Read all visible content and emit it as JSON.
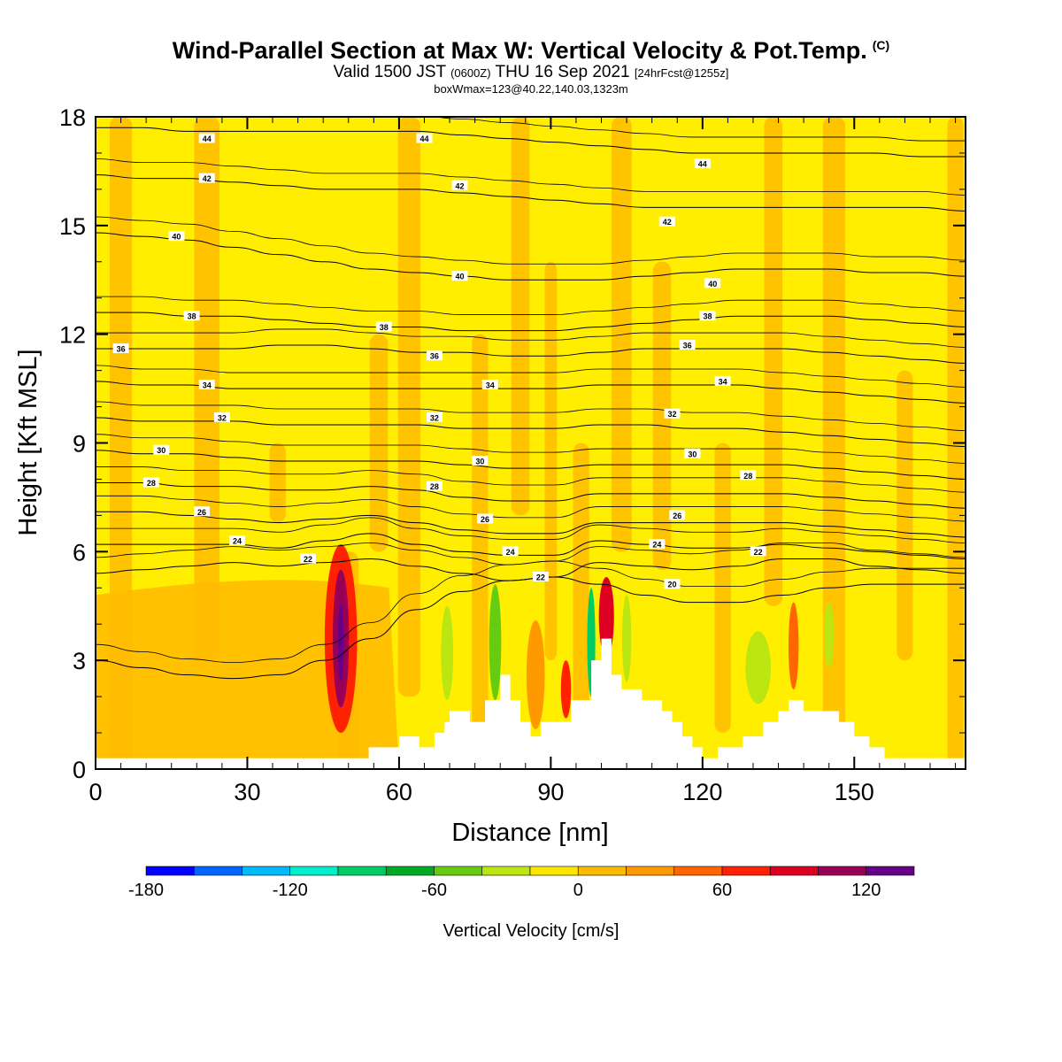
{
  "header": {
    "title": "Wind-Parallel Section at Max W: Vertical Velocity & Pot.Temp.",
    "copyright": "(C)",
    "valid_prefix": "Valid 1500 JST",
    "valid_utc": "(0600Z)",
    "valid_date": "THU 16 Sep 2021",
    "forecast": "[24hrFcst@1255z]",
    "boxinfo": "boxWmax=123@40.22,140.03,1323m"
  },
  "colors": {
    "background": "#ffee00",
    "terrain": "#ffffff",
    "scale": [
      "#0000ff",
      "#0066ff",
      "#00bbff",
      "#00eecc",
      "#00cc66",
      "#00aa22",
      "#66cc11",
      "#bbe611",
      "#ffe600",
      "#ffbb00",
      "#ff9900",
      "#ff6600",
      "#ff2200",
      "#dd0022",
      "#990055",
      "#660088"
    ]
  },
  "colorbar": {
    "label": "Vertical Velocity [cm/s]",
    "ticks": [
      "-180",
      "-120",
      "-60",
      "0",
      "60",
      "120"
    ],
    "tick_values": [
      -180,
      -120,
      -60,
      0,
      60,
      120
    ],
    "range": [
      -180,
      140
    ]
  },
  "chart_data": {
    "type": "heatmap",
    "title": "Wind-Parallel Section at Max W: Vertical Velocity & Pot.Temp.",
    "xlabel": "Distance [nm]",
    "ylabel": "Height [Kft MSL]",
    "xlim": [
      0,
      172
    ],
    "ylim": [
      0,
      18
    ],
    "xticks": [
      "0",
      "30",
      "60",
      "90",
      "120",
      "150"
    ],
    "yticks": [
      "0",
      "3",
      "6",
      "9",
      "12",
      "15",
      "18"
    ],
    "terrain": [
      [
        0,
        0.3
      ],
      [
        54,
        0.3
      ],
      [
        54,
        0.6
      ],
      [
        60,
        0.6
      ],
      [
        60,
        0.9
      ],
      [
        64,
        0.9
      ],
      [
        64,
        0.6
      ],
      [
        67,
        0.6
      ],
      [
        67,
        1.0
      ],
      [
        69,
        1.0
      ],
      [
        69,
        1.3
      ],
      [
        70,
        1.3
      ],
      [
        70,
        1.6
      ],
      [
        74,
        1.6
      ],
      [
        74,
        1.3
      ],
      [
        77,
        1.3
      ],
      [
        77,
        1.9
      ],
      [
        80,
        1.9
      ],
      [
        80,
        2.6
      ],
      [
        82,
        2.6
      ],
      [
        82,
        1.9
      ],
      [
        84,
        1.9
      ],
      [
        84,
        1.3
      ],
      [
        86,
        1.3
      ],
      [
        86,
        0.9
      ],
      [
        88,
        0.9
      ],
      [
        88,
        1.3
      ],
      [
        94,
        1.3
      ],
      [
        94,
        1.9
      ],
      [
        98,
        1.9
      ],
      [
        98,
        3.0
      ],
      [
        100,
        3.0
      ],
      [
        100,
        3.6
      ],
      [
        102,
        3.6
      ],
      [
        102,
        2.6
      ],
      [
        104,
        2.6
      ],
      [
        104,
        2.2
      ],
      [
        108,
        2.2
      ],
      [
        108,
        1.9
      ],
      [
        112,
        1.9
      ],
      [
        112,
        1.6
      ],
      [
        114,
        1.6
      ],
      [
        114,
        1.3
      ],
      [
        116,
        1.3
      ],
      [
        116,
        0.9
      ],
      [
        118,
        0.9
      ],
      [
        118,
        0.6
      ],
      [
        120,
        0.6
      ],
      [
        120,
        0.3
      ],
      [
        123,
        0.3
      ],
      [
        123,
        0.6
      ],
      [
        128,
        0.6
      ],
      [
        128,
        0.9
      ],
      [
        132,
        0.9
      ],
      [
        132,
        1.3
      ],
      [
        135,
        1.3
      ],
      [
        135,
        1.6
      ],
      [
        137,
        1.6
      ],
      [
        137,
        1.9
      ],
      [
        140,
        1.9
      ],
      [
        140,
        1.6
      ],
      [
        147,
        1.6
      ],
      [
        147,
        1.3
      ],
      [
        150,
        1.3
      ],
      [
        150,
        0.9
      ],
      [
        153,
        0.9
      ],
      [
        153,
        0.6
      ],
      [
        156,
        0.6
      ],
      [
        156,
        0.3
      ],
      [
        172,
        0.3
      ]
    ],
    "theta_levels": [
      {
        "value": 20,
        "y": [
          3.0,
          2.8,
          2.6,
          2.5,
          2.6,
          3.0,
          3.6,
          4.4,
          4.9,
          5.2,
          5.3,
          5.1,
          4.8,
          4.6,
          4.6,
          4.8,
          5.0,
          5.1,
          5.1,
          5.1
        ]
      },
      {
        "value": 22,
        "y": [
          5.4,
          5.5,
          5.6,
          5.7,
          5.6,
          5.7,
          5.8,
          5.6,
          5.4,
          5.2,
          5.3,
          5.7,
          5.6,
          5.5,
          5.6,
          5.8,
          5.8,
          5.6,
          5.5,
          5.4
        ]
      },
      {
        "value": 24,
        "y": [
          6.2,
          6.2,
          6.2,
          6.2,
          6.1,
          6.3,
          6.5,
          6.2,
          6.0,
          5.9,
          5.9,
          6.3,
          6.2,
          6.1,
          6.1,
          6.2,
          6.1,
          6.0,
          5.9,
          5.8
        ]
      },
      {
        "value": 26,
        "y": [
          7.1,
          7.1,
          7.0,
          6.9,
          6.8,
          6.9,
          7.0,
          6.8,
          6.6,
          6.5,
          6.5,
          6.8,
          6.8,
          6.8,
          6.8,
          6.8,
          6.7,
          6.6,
          6.5,
          6.4
        ]
      },
      {
        "value": 28,
        "y": [
          7.9,
          7.9,
          7.8,
          7.8,
          7.7,
          7.7,
          7.8,
          7.7,
          7.5,
          7.4,
          7.4,
          7.6,
          7.6,
          7.6,
          7.6,
          7.6,
          7.5,
          7.4,
          7.3,
          7.2
        ]
      },
      {
        "value": 30,
        "y": [
          8.8,
          8.7,
          8.7,
          8.6,
          8.5,
          8.5,
          8.5,
          8.5,
          8.4,
          8.3,
          8.3,
          8.4,
          8.4,
          8.4,
          8.4,
          8.4,
          8.3,
          8.2,
          8.1,
          8.0
        ]
      },
      {
        "value": 32,
        "y": [
          9.7,
          9.6,
          9.6,
          9.6,
          9.5,
          9.5,
          9.5,
          9.5,
          9.4,
          9.4,
          9.4,
          9.5,
          9.5,
          9.4,
          9.4,
          9.3,
          9.2,
          9.1,
          9.0,
          8.9
        ]
      },
      {
        "value": 34,
        "y": [
          10.7,
          10.6,
          10.6,
          10.5,
          10.5,
          10.5,
          10.5,
          10.5,
          10.5,
          10.5,
          10.5,
          10.6,
          10.6,
          10.6,
          10.6,
          10.5,
          10.4,
          10.3,
          10.2,
          10.1
        ]
      },
      {
        "value": 36,
        "y": [
          11.6,
          11.6,
          11.6,
          11.6,
          11.7,
          11.7,
          11.6,
          11.5,
          11.5,
          11.4,
          11.4,
          11.5,
          11.6,
          11.6,
          11.6,
          11.6,
          11.5,
          11.4,
          11.3,
          11.2
        ]
      },
      {
        "value": 38,
        "y": [
          12.6,
          12.6,
          12.5,
          12.5,
          12.4,
          12.3,
          12.2,
          12.2,
          12.1,
          12.1,
          12.1,
          12.2,
          12.3,
          12.4,
          12.5,
          12.5,
          12.5,
          12.4,
          12.3,
          12.2
        ]
      },
      {
        "value": 40,
        "y": [
          14.8,
          14.7,
          14.6,
          14.4,
          14.2,
          14.0,
          13.8,
          13.7,
          13.6,
          13.5,
          13.5,
          13.5,
          13.6,
          13.7,
          13.8,
          13.8,
          13.8,
          13.7,
          13.7,
          13.6
        ]
      },
      {
        "value": 42,
        "y": [
          16.4,
          16.3,
          16.3,
          16.2,
          16.1,
          16.0,
          16.0,
          16.0,
          15.9,
          15.8,
          15.7,
          15.6,
          15.5,
          15.5,
          15.5,
          15.5,
          15.5,
          15.5,
          15.5,
          15.4
        ]
      },
      {
        "value": 44,
        "y": [
          17.7,
          17.7,
          17.6,
          17.6,
          17.6,
          17.6,
          17.6,
          17.6,
          17.5,
          17.4,
          17.3,
          17.2,
          17.1,
          17.0,
          17.0,
          17.0,
          17.0,
          17.0,
          16.9,
          16.9
        ]
      }
    ],
    "theta_labels": [
      {
        "text": "44",
        "x": 22,
        "y": 17.4
      },
      {
        "text": "44",
        "x": 65,
        "y": 17.4
      },
      {
        "text": "44",
        "x": 120,
        "y": 16.7
      },
      {
        "text": "42",
        "x": 22,
        "y": 16.3
      },
      {
        "text": "42",
        "x": 72,
        "y": 16.1
      },
      {
        "text": "42",
        "x": 113,
        "y": 15.1
      },
      {
        "text": "40",
        "x": 16,
        "y": 14.7
      },
      {
        "text": "40",
        "x": 72,
        "y": 13.6
      },
      {
        "text": "40",
        "x": 122,
        "y": 13.4
      },
      {
        "text": "38",
        "x": 19,
        "y": 12.5
      },
      {
        "text": "38",
        "x": 57,
        "y": 12.2
      },
      {
        "text": "38",
        "x": 121,
        "y": 12.5
      },
      {
        "text": "36",
        "x": 5,
        "y": 11.6
      },
      {
        "text": "36",
        "x": 67,
        "y": 11.4
      },
      {
        "text": "36",
        "x": 117,
        "y": 11.7
      },
      {
        "text": "34",
        "x": 22,
        "y": 10.6
      },
      {
        "text": "34",
        "x": 78,
        "y": 10.6
      },
      {
        "text": "34",
        "x": 124,
        "y": 10.7
      },
      {
        "text": "32",
        "x": 25,
        "y": 9.7
      },
      {
        "text": "32",
        "x": 67,
        "y": 9.7
      },
      {
        "text": "32",
        "x": 114,
        "y": 9.8
      },
      {
        "text": "30",
        "x": 13,
        "y": 8.8
      },
      {
        "text": "30",
        "x": 76,
        "y": 8.5
      },
      {
        "text": "30",
        "x": 118,
        "y": 8.7
      },
      {
        "text": "28",
        "x": 11,
        "y": 7.9
      },
      {
        "text": "28",
        "x": 67,
        "y": 7.8
      },
      {
        "text": "28",
        "x": 129,
        "y": 8.1
      },
      {
        "text": "26",
        "x": 21,
        "y": 7.1
      },
      {
        "text": "26",
        "x": 77,
        "y": 6.9
      },
      {
        "text": "26",
        "x": 115,
        "y": 7.0
      },
      {
        "text": "24",
        "x": 28,
        "y": 6.3
      },
      {
        "text": "24",
        "x": 82,
        "y": 6.0
      },
      {
        "text": "24",
        "x": 111,
        "y": 6.2
      },
      {
        "text": "22",
        "x": 42,
        "y": 5.8
      },
      {
        "text": "22",
        "x": 88,
        "y": 5.3
      },
      {
        "text": "22",
        "x": 131,
        "y": 6.0
      },
      {
        "text": "20",
        "x": 114,
        "y": 5.1
      }
    ],
    "w_features": [
      {
        "x": 48.5,
        "y": 3.6,
        "rx": 3.2,
        "ry": 2.6,
        "w": 75
      },
      {
        "x": 48.5,
        "y": 3.6,
        "rx": 1.6,
        "ry": 1.9,
        "w": 110
      },
      {
        "x": 48.5,
        "y": 3.5,
        "rx": 0.6,
        "ry": 1.1,
        "w": 130
      },
      {
        "x": 101,
        "y": 4.2,
        "rx": 1.5,
        "ry": 1.1,
        "w": 80
      },
      {
        "x": 98,
        "y": 3.5,
        "rx": 0.8,
        "ry": 1.5,
        "w": -90
      },
      {
        "x": 105,
        "y": 3.6,
        "rx": 0.9,
        "ry": 1.2,
        "w": -40
      },
      {
        "x": 79,
        "y": 3.5,
        "rx": 1.2,
        "ry": 1.6,
        "w": -45
      },
      {
        "x": 69.5,
        "y": 3.2,
        "rx": 1.2,
        "ry": 1.3,
        "w": -40
      },
      {
        "x": 93,
        "y": 2.2,
        "rx": 1.0,
        "ry": 0.8,
        "w": 60
      },
      {
        "x": 87,
        "y": 2.6,
        "rx": 1.8,
        "ry": 1.5,
        "w": 30
      },
      {
        "x": 131,
        "y": 2.8,
        "rx": 2.5,
        "ry": 1.0,
        "w": -25
      },
      {
        "x": 145,
        "y": 3.7,
        "rx": 1.0,
        "ry": 0.9,
        "w": -35
      },
      {
        "x": 138,
        "y": 3.4,
        "rx": 1.0,
        "ry": 1.2,
        "w": 50
      }
    ]
  }
}
